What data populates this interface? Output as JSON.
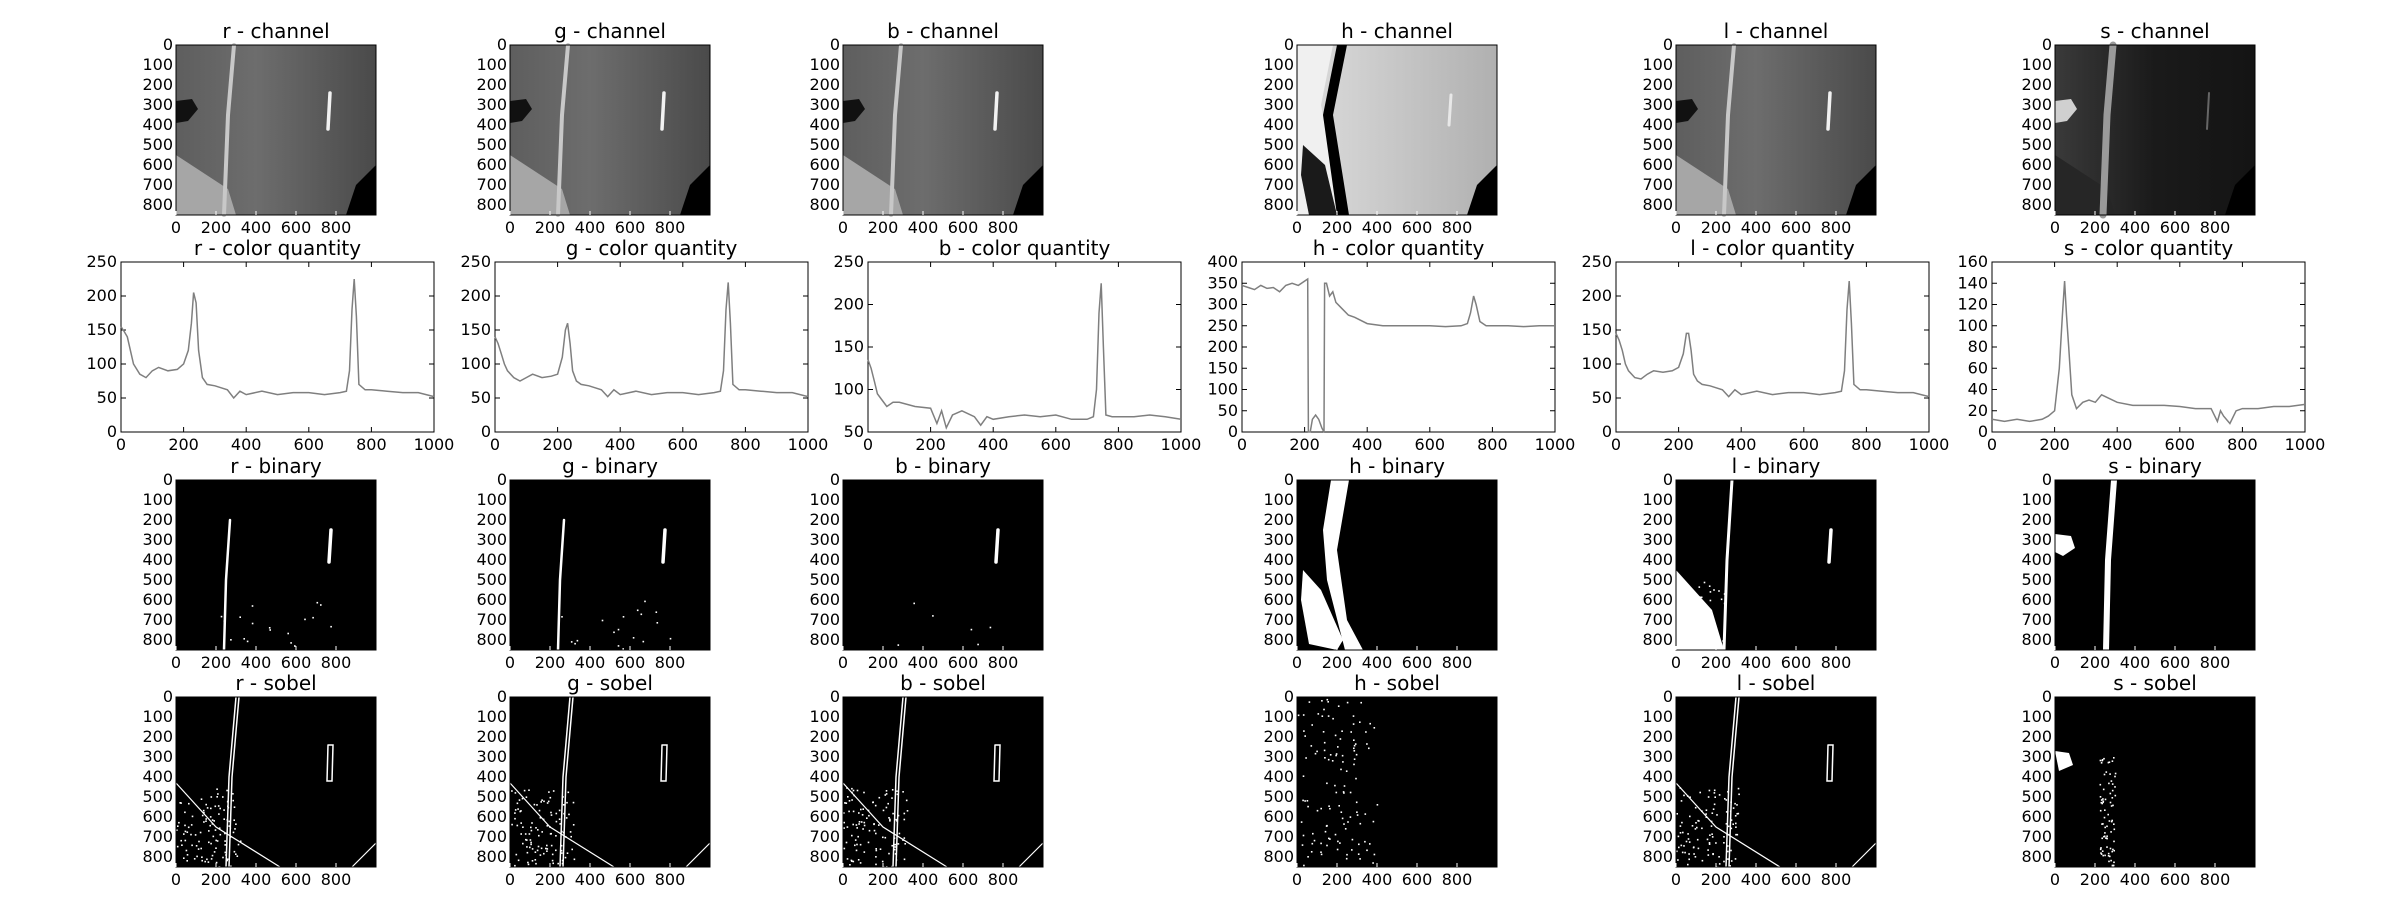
{
  "colors": {
    "line": "#7f7f7f",
    "frame": "#000000",
    "image_background": "#000000",
    "white_pixels": "#ffffff"
  },
  "images": {
    "x_ticks": [
      "0",
      "200",
      "400",
      "600",
      "800"
    ],
    "y_ticks": [
      "0",
      "100",
      "200",
      "300",
      "400",
      "500",
      "600",
      "700",
      "800"
    ],
    "x_tick_values": [
      0,
      200,
      400,
      600,
      800
    ],
    "y_tick_values": [
      0,
      100,
      200,
      300,
      400,
      500,
      600,
      700,
      800
    ],
    "x_range": [
      0,
      1000
    ],
    "y_range": [
      0,
      850
    ]
  },
  "channels": [
    {
      "key": "r",
      "channel_title": "r - channel",
      "quantity_title": "r - color quantity",
      "binary_title": "r - binary",
      "sobel_title": "r - sobel"
    },
    {
      "key": "g",
      "channel_title": "g - channel",
      "quantity_title": "g - color quantity",
      "binary_title": "g - binary",
      "sobel_title": "g - sobel"
    },
    {
      "key": "b",
      "channel_title": "b - channel",
      "quantity_title": "b - color quantity",
      "binary_title": "b - binary",
      "sobel_title": "b - sobel"
    },
    {
      "key": "h",
      "channel_title": "h - channel",
      "quantity_title": "h - color quantity",
      "binary_title": "h - binary",
      "sobel_title": "h - sobel"
    },
    {
      "key": "l",
      "channel_title": "l - channel",
      "quantity_title": "l - color quantity",
      "binary_title": "l - binary",
      "sobel_title": "l - sobel"
    },
    {
      "key": "s",
      "channel_title": "s - channel",
      "quantity_title": "s - color quantity",
      "binary_title": "s - binary",
      "sobel_title": "s - sobel"
    }
  ],
  "chart_data": [
    {
      "type": "line",
      "title": "r - color quantity",
      "xlim": [
        0,
        1000
      ],
      "ylim": [
        0,
        250
      ],
      "x_ticks": [
        0,
        200,
        400,
        600,
        800,
        1000
      ],
      "y_ticks": [
        0,
        50,
        100,
        150,
        200,
        250
      ],
      "series": [
        {
          "x": [
            0,
            10,
            20,
            30,
            40,
            60,
            80,
            100,
            120,
            150,
            180,
            200,
            215,
            225,
            232,
            240,
            248,
            260,
            275,
            300,
            320,
            340,
            360,
            380,
            400,
            450,
            500,
            550,
            600,
            650,
            700,
            720,
            730,
            738,
            745,
            752,
            760,
            780,
            800,
            850,
            900,
            950,
            1000
          ],
          "y": [
            155,
            148,
            140,
            120,
            100,
            85,
            80,
            90,
            95,
            90,
            92,
            100,
            120,
            160,
            205,
            190,
            120,
            80,
            70,
            68,
            65,
            62,
            50,
            60,
            55,
            60,
            55,
            58,
            58,
            55,
            58,
            60,
            90,
            180,
            225,
            170,
            70,
            62,
            62,
            60,
            58,
            58,
            52
          ]
        }
      ]
    },
    {
      "type": "line",
      "title": "g - color quantity",
      "xlim": [
        0,
        1000
      ],
      "ylim": [
        0,
        250
      ],
      "x_ticks": [
        0,
        200,
        400,
        600,
        800,
        1000
      ],
      "y_ticks": [
        0,
        50,
        100,
        150,
        200,
        250
      ],
      "series": [
        {
          "x": [
            0,
            10,
            20,
            30,
            40,
            60,
            80,
            100,
            120,
            150,
            180,
            200,
            215,
            225,
            232,
            240,
            248,
            260,
            275,
            300,
            320,
            340,
            360,
            380,
            400,
            450,
            500,
            550,
            600,
            650,
            700,
            720,
            730,
            738,
            745,
            752,
            760,
            780,
            800,
            850,
            900,
            950,
            1000
          ],
          "y": [
            140,
            130,
            115,
            100,
            90,
            80,
            75,
            80,
            85,
            80,
            82,
            85,
            110,
            150,
            160,
            130,
            90,
            75,
            70,
            68,
            65,
            62,
            52,
            62,
            55,
            60,
            55,
            58,
            58,
            55,
            58,
            60,
            90,
            180,
            220,
            160,
            70,
            62,
            62,
            60,
            58,
            58,
            52
          ]
        }
      ]
    },
    {
      "type": "line",
      "title": "b - color quantity",
      "xlim": [
        0,
        1000
      ],
      "ylim": [
        50,
        250
      ],
      "x_ticks": [
        0,
        200,
        400,
        600,
        800,
        1000
      ],
      "y_ticks": [
        50,
        100,
        150,
        200,
        250
      ],
      "series": [
        {
          "x": [
            0,
            10,
            20,
            30,
            40,
            60,
            80,
            100,
            150,
            200,
            220,
            235,
            250,
            270,
            300,
            340,
            360,
            380,
            400,
            450,
            500,
            550,
            600,
            650,
            700,
            720,
            730,
            738,
            745,
            752,
            760,
            780,
            800,
            850,
            900,
            950,
            1000
          ],
          "y": [
            135,
            125,
            110,
            95,
            90,
            80,
            85,
            85,
            80,
            78,
            60,
            75,
            55,
            70,
            75,
            68,
            58,
            68,
            65,
            68,
            70,
            68,
            70,
            65,
            65,
            68,
            100,
            190,
            225,
            150,
            70,
            68,
            68,
            68,
            70,
            68,
            65
          ]
        }
      ]
    },
    {
      "type": "line",
      "title": "h - color quantity",
      "xlim": [
        0,
        1000
      ],
      "ylim": [
        0,
        400
      ],
      "x_ticks": [
        0,
        200,
        400,
        600,
        800,
        1000
      ],
      "y_ticks": [
        0,
        50,
        100,
        150,
        200,
        250,
        300,
        350,
        400
      ],
      "series": [
        {
          "x": [
            0,
            20,
            40,
            60,
            80,
            100,
            120,
            140,
            160,
            180,
            200,
            210,
            212,
            218,
            225,
            235,
            245,
            255,
            262,
            264,
            270,
            280,
            290,
            300,
            320,
            340,
            360,
            400,
            450,
            500,
            550,
            600,
            650,
            700,
            720,
            730,
            740,
            748,
            760,
            780,
            800,
            850,
            900,
            950,
            1000
          ],
          "y": [
            345,
            340,
            335,
            345,
            338,
            340,
            330,
            345,
            350,
            345,
            355,
            360,
            0,
            0,
            30,
            40,
            30,
            10,
            0,
            350,
            350,
            320,
            330,
            305,
            290,
            275,
            270,
            255,
            250,
            250,
            250,
            250,
            248,
            250,
            255,
            280,
            320,
            300,
            260,
            250,
            250,
            250,
            248,
            250,
            250
          ]
        }
      ]
    },
    {
      "type": "line",
      "title": "l - color quantity",
      "xlim": [
        0,
        1000
      ],
      "ylim": [
        0,
        250
      ],
      "x_ticks": [
        0,
        200,
        400,
        600,
        800,
        1000
      ],
      "y_ticks": [
        0,
        50,
        100,
        150,
        200,
        250
      ],
      "series": [
        {
          "x": [
            0,
            10,
            20,
            30,
            40,
            60,
            80,
            100,
            120,
            150,
            180,
            200,
            215,
            225,
            232,
            240,
            248,
            260,
            275,
            300,
            320,
            340,
            360,
            380,
            400,
            450,
            500,
            550,
            600,
            650,
            700,
            720,
            730,
            738,
            745,
            752,
            760,
            780,
            800,
            850,
            900,
            950,
            1000
          ],
          "y": [
            145,
            135,
            120,
            100,
            90,
            80,
            78,
            85,
            90,
            88,
            90,
            95,
            115,
            145,
            145,
            120,
            85,
            75,
            70,
            68,
            65,
            62,
            52,
            62,
            55,
            60,
            55,
            58,
            58,
            55,
            58,
            60,
            90,
            180,
            222,
            160,
            70,
            62,
            62,
            60,
            58,
            58,
            52
          ]
        }
      ]
    },
    {
      "type": "line",
      "title": "s - color quantity",
      "xlim": [
        0,
        1000
      ],
      "ylim": [
        0,
        160
      ],
      "x_ticks": [
        0,
        200,
        400,
        600,
        800,
        1000
      ],
      "y_ticks": [
        0,
        20,
        40,
        60,
        80,
        100,
        120,
        140,
        160
      ],
      "series": [
        {
          "x": [
            0,
            40,
            80,
            120,
            160,
            180,
            200,
            215,
            225,
            232,
            238,
            245,
            255,
            270,
            290,
            310,
            330,
            350,
            400,
            450,
            500,
            550,
            600,
            650,
            700,
            720,
            730,
            740,
            760,
            780,
            800,
            850,
            900,
            950,
            1000
          ],
          "y": [
            12,
            10,
            12,
            10,
            12,
            15,
            20,
            60,
            110,
            142,
            110,
            80,
            35,
            22,
            28,
            30,
            28,
            35,
            28,
            25,
            25,
            25,
            24,
            22,
            22,
            10,
            20,
            15,
            8,
            20,
            22,
            22,
            24,
            24,
            26
          ]
        }
      ]
    }
  ]
}
